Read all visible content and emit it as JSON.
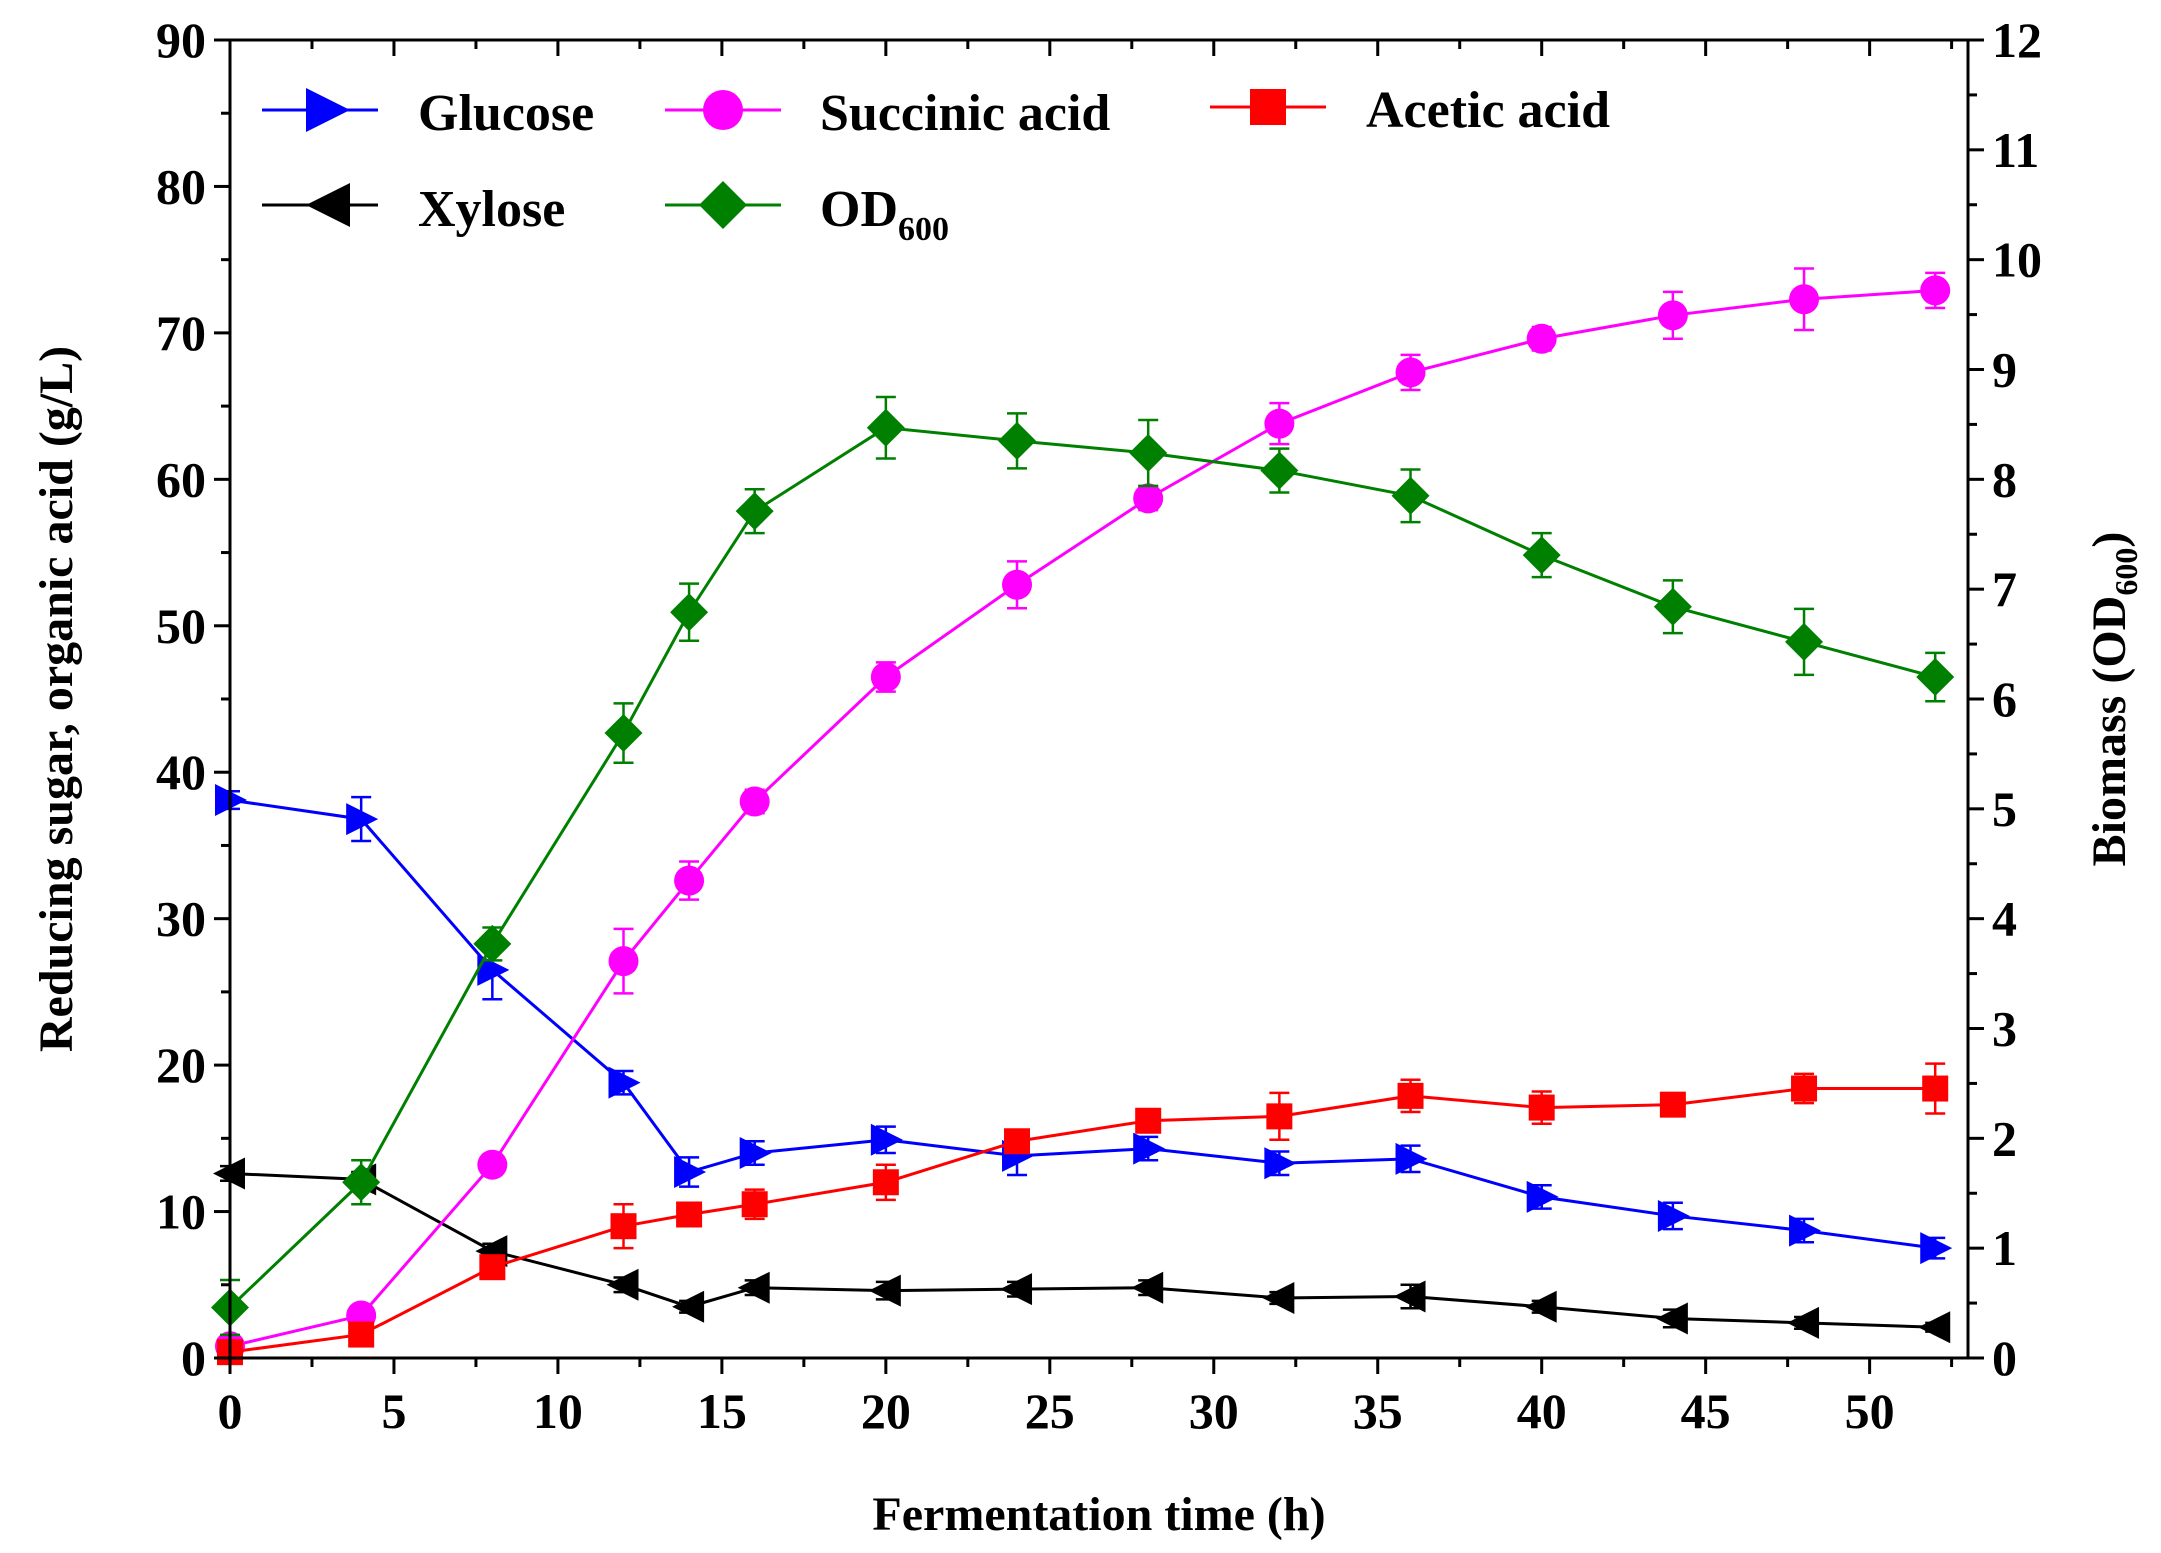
{
  "chart_data": {
    "type": "line",
    "title": "",
    "xlabel": "Fermentation time (h)",
    "ylabel": "Reducing sugar, organic acid (g/L)",
    "ylabel_right": "Biomass (OD",
    "ylabel_right_sub": "600",
    "ylabel_right_end": ")",
    "xlim": [
      0,
      53
    ],
    "ylim": [
      0,
      90
    ],
    "ylim_right": [
      0,
      12
    ],
    "xticks": [
      "0",
      "5",
      "10",
      "15",
      "20",
      "25",
      "30",
      "35",
      "40",
      "45",
      "50"
    ],
    "yticks": [
      "0",
      "10",
      "20",
      "30",
      "40",
      "50",
      "60",
      "70",
      "80",
      "90"
    ],
    "yticks_right": [
      "0",
      "1",
      "2",
      "3",
      "4",
      "5",
      "6",
      "7",
      "8",
      "9",
      "10",
      "11",
      "12"
    ],
    "legend_placement": "top-left",
    "series": [
      {
        "name": "Glucose",
        "axis": "left",
        "color": "#0000ff",
        "marker": "triangle-right",
        "x": [
          0,
          4,
          8,
          12,
          14,
          16,
          20,
          24,
          28,
          32,
          36,
          40,
          44,
          48,
          52
        ],
        "y": [
          38.1,
          36.8,
          26.5,
          18.8,
          12.7,
          14.0,
          14.9,
          13.8,
          14.3,
          13.3,
          13.6,
          11.0,
          9.7,
          8.7,
          7.5
        ],
        "err": [
          0.6,
          1.5,
          2.0,
          0.8,
          1.0,
          0.8,
          0.9,
          1.3,
          0.8,
          0.8,
          0.9,
          0.8,
          0.9,
          0.8,
          0.7
        ]
      },
      {
        "name": "Xylose",
        "axis": "left",
        "color": "#000000",
        "marker": "triangle-left",
        "x": [
          0,
          4,
          8,
          12,
          14,
          16,
          20,
          24,
          28,
          32,
          36,
          40,
          44,
          48,
          52
        ],
        "y": [
          12.6,
          12.2,
          7.3,
          5.0,
          3.5,
          4.8,
          4.6,
          4.7,
          4.8,
          4.1,
          4.2,
          3.5,
          2.7,
          2.4,
          2.1
        ],
        "err": [
          0.5,
          0.5,
          0.5,
          0.5,
          0.4,
          0.5,
          0.6,
          0.5,
          0.5,
          0.4,
          0.8,
          0.4,
          0.6,
          0.4,
          0.3
        ]
      },
      {
        "name": "Succinic acid",
        "axis": "left",
        "color": "#ff00ff",
        "marker": "circle",
        "x": [
          0,
          4,
          8,
          12,
          14,
          16,
          20,
          24,
          28,
          32,
          36,
          40,
          44,
          48,
          52
        ],
        "y": [
          0.8,
          2.9,
          13.2,
          27.1,
          32.6,
          38.0,
          46.5,
          52.8,
          58.7,
          63.8,
          67.3,
          69.6,
          71.2,
          72.3,
          72.9
        ],
        "err": [
          0.3,
          0.5,
          0.7,
          2.2,
          1.3,
          0.8,
          1.0,
          1.6,
          0.8,
          1.4,
          1.2,
          0.8,
          1.6,
          2.1,
          1.2
        ]
      },
      {
        "name": "Acetic acid",
        "axis": "left",
        "color": "#ff0000",
        "marker": "square",
        "x": [
          0,
          4,
          8,
          12,
          14,
          16,
          20,
          24,
          28,
          32,
          36,
          40,
          44,
          48,
          52
        ],
        "y": [
          0.4,
          1.6,
          6.2,
          9.0,
          9.8,
          10.5,
          12.0,
          14.8,
          16.2,
          16.5,
          17.9,
          17.1,
          17.3,
          18.4,
          18.4
        ],
        "err": [
          0.3,
          0.3,
          0.6,
          1.5,
          0.7,
          1.0,
          1.2,
          0.6,
          0.7,
          1.6,
          1.1,
          1.1,
          0.6,
          1.0,
          1.7
        ]
      },
      {
        "name": "OD",
        "name_sub": "600",
        "axis": "right",
        "color": "#008000",
        "marker": "diamond",
        "x": [
          0,
          4,
          8,
          12,
          14,
          16,
          20,
          24,
          28,
          32,
          36,
          40,
          44,
          48,
          52
        ],
        "y": [
          0.46,
          1.6,
          3.77,
          5.69,
          6.79,
          7.71,
          8.47,
          8.35,
          8.24,
          8.08,
          7.85,
          7.31,
          6.84,
          6.52,
          6.2
        ],
        "err": [
          0.25,
          0.2,
          0.15,
          0.27,
          0.26,
          0.2,
          0.28,
          0.25,
          0.3,
          0.2,
          0.24,
          0.2,
          0.24,
          0.3,
          0.22
        ]
      }
    ]
  }
}
